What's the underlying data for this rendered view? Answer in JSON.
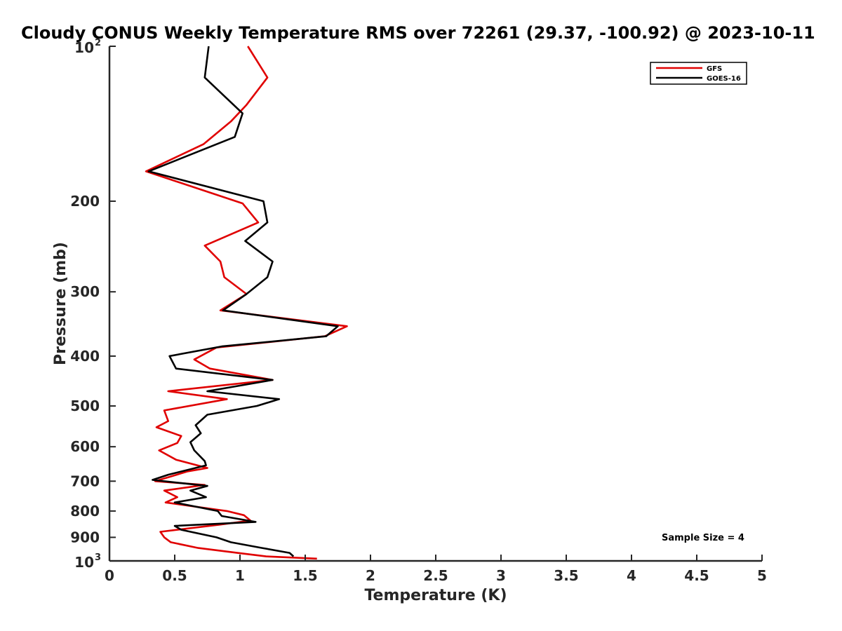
{
  "chart_data": {
    "type": "line",
    "title": "Cloudy CONUS Weekly Temperature RMS over 72261 (29.37, -100.92) @ 2023-10-11",
    "xlabel": "Temperature (K)",
    "ylabel": "Pressure (mb)",
    "xlim": [
      0,
      5
    ],
    "ylim": [
      100,
      1000
    ],
    "yscale": "log",
    "y_reversed": true,
    "x_ticks": [
      "0",
      "0.5",
      "1",
      "1.5",
      "2",
      "2.5",
      "3",
      "3.5",
      "4",
      "4.5",
      "5"
    ],
    "x_tick_values": [
      0,
      0.5,
      1,
      1.5,
      2,
      2.5,
      3,
      3.5,
      4,
      4.5,
      5
    ],
    "y_ticks": [
      {
        "value": 100,
        "base": "10",
        "exp": "2"
      },
      {
        "value": 200,
        "label": "200"
      },
      {
        "value": 300,
        "label": "300"
      },
      {
        "value": 400,
        "label": "400"
      },
      {
        "value": 500,
        "label": "500"
      },
      {
        "value": 600,
        "label": "600"
      },
      {
        "value": 700,
        "label": "700"
      },
      {
        "value": 800,
        "label": "800"
      },
      {
        "value": 900,
        "label": "900"
      },
      {
        "value": 1000,
        "base": "10",
        "exp": "3"
      }
    ],
    "legend_position": "top-right",
    "annotation": "Sample Size = 4",
    "series": [
      {
        "name": "GFS",
        "color": "#e00000",
        "points": [
          [
            1.06,
            100
          ],
          [
            1.21,
            115
          ],
          [
            1.05,
            130
          ],
          [
            0.93,
            140
          ],
          [
            0.72,
            155
          ],
          [
            0.28,
            175
          ],
          [
            1.02,
            202
          ],
          [
            1.14,
            220
          ],
          [
            0.73,
            244
          ],
          [
            0.85,
            262
          ],
          [
            0.88,
            281
          ],
          [
            1.05,
            303
          ],
          [
            0.85,
            326
          ],
          [
            1.82,
            350
          ],
          [
            1.65,
            366
          ],
          [
            0.82,
            385
          ],
          [
            0.65,
            406
          ],
          [
            0.77,
            423
          ],
          [
            1.25,
            445
          ],
          [
            0.45,
            468
          ],
          [
            0.9,
            485
          ],
          [
            0.42,
            510
          ],
          [
            0.45,
            535
          ],
          [
            0.36,
            550
          ],
          [
            0.55,
            572
          ],
          [
            0.52,
            590
          ],
          [
            0.38,
            610
          ],
          [
            0.51,
            636
          ],
          [
            0.75,
            660
          ],
          [
            0.6,
            670
          ],
          [
            0.45,
            688
          ],
          [
            0.35,
            700
          ],
          [
            0.73,
            712
          ],
          [
            0.42,
            730
          ],
          [
            0.52,
            752
          ],
          [
            0.43,
            770
          ],
          [
            0.9,
            800
          ],
          [
            1.03,
            815
          ],
          [
            1.08,
            835
          ],
          [
            0.85,
            850
          ],
          [
            0.39,
            878
          ],
          [
            0.42,
            900
          ],
          [
            0.47,
            920
          ],
          [
            0.68,
            944
          ],
          [
            0.98,
            965
          ],
          [
            1.2,
            980
          ],
          [
            1.59,
            990
          ]
        ]
      },
      {
        "name": "GOES-16",
        "color": "#000000",
        "points": [
          [
            0.76,
            100
          ],
          [
            0.73,
            115
          ],
          [
            1.02,
            135
          ],
          [
            0.96,
            150
          ],
          [
            0.3,
            175
          ],
          [
            1.18,
            200
          ],
          [
            1.21,
            220
          ],
          [
            1.04,
            239
          ],
          [
            1.25,
            262
          ],
          [
            1.21,
            281
          ],
          [
            1.05,
            303
          ],
          [
            0.87,
            326
          ],
          [
            1.75,
            350
          ],
          [
            1.66,
            366
          ],
          [
            0.86,
            383
          ],
          [
            0.46,
            400
          ],
          [
            0.51,
            423
          ],
          [
            1.25,
            445
          ],
          [
            0.75,
            468
          ],
          [
            1.3,
            485
          ],
          [
            1.13,
            500
          ],
          [
            0.75,
            520
          ],
          [
            0.66,
            545
          ],
          [
            0.7,
            565
          ],
          [
            0.62,
            588
          ],
          [
            0.65,
            610
          ],
          [
            0.73,
            640
          ],
          [
            0.74,
            652
          ],
          [
            0.45,
            680
          ],
          [
            0.33,
            696
          ],
          [
            0.75,
            715
          ],
          [
            0.62,
            730
          ],
          [
            0.74,
            752
          ],
          [
            0.5,
            770
          ],
          [
            0.83,
            800
          ],
          [
            0.86,
            818
          ],
          [
            1.12,
            840
          ],
          [
            0.5,
            855
          ],
          [
            0.55,
            870
          ],
          [
            0.82,
            900
          ],
          [
            0.93,
            920
          ],
          [
            1.17,
            944
          ],
          [
            1.38,
            965
          ],
          [
            1.41,
            980
          ]
        ]
      }
    ]
  }
}
